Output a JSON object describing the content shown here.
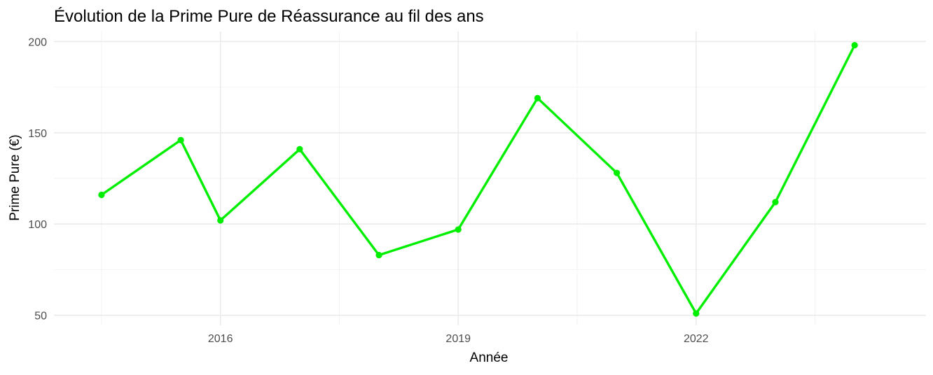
{
  "chart_data": {
    "type": "line",
    "title": "Évolution de la Prime Pure de Réassurance au fil des ans",
    "xlabel": "Année",
    "ylabel": "Prime Pure (€)",
    "x_ticks": [
      2016,
      2019,
      2022
    ],
    "y_ticks": [
      50,
      100,
      150,
      200
    ],
    "xlim": [
      2013.9,
      2024.9
    ],
    "ylim": [
      44.5,
      205.5
    ],
    "grid": true,
    "legend": "none",
    "color": "#00ee00",
    "series": [
      {
        "x": [
          2014.5,
          2015.5,
          2016.0,
          2017.0,
          2018.0,
          2019.0,
          2020.0,
          2021.0,
          2022.0,
          2023.0,
          2024.0
        ],
        "values": [
          116,
          146,
          102,
          141,
          83,
          97,
          169,
          128,
          51,
          112,
          198
        ]
      }
    ]
  }
}
